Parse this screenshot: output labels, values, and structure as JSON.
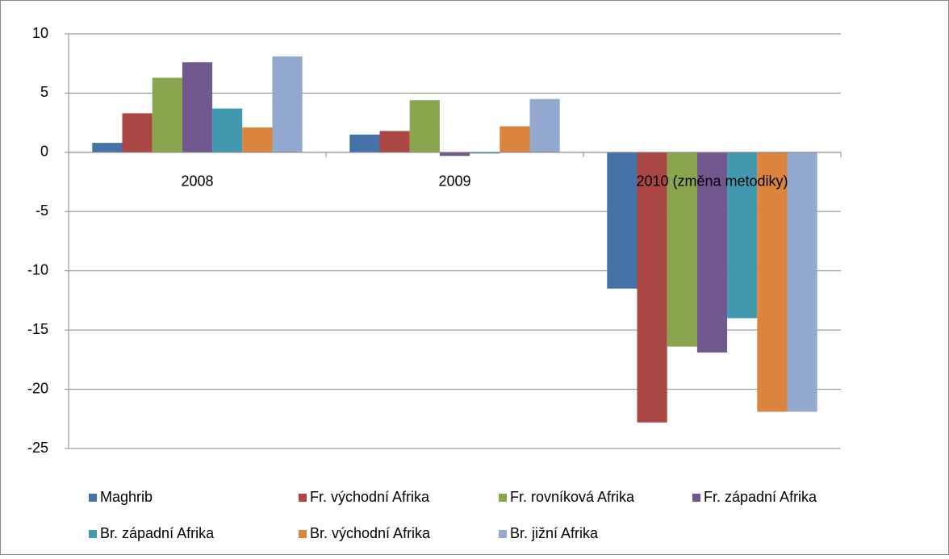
{
  "chart_data": {
    "type": "bar",
    "categories": [
      "2008",
      "2009",
      "2010 (změna metodiky)"
    ],
    "series": [
      {
        "name": "Maghrib",
        "color": "#4572a7",
        "values": [
          0.8,
          1.5,
          -11.5
        ]
      },
      {
        "name": "Fr. východní Afrika",
        "color": "#aa4643",
        "values": [
          3.3,
          1.8,
          -22.8
        ]
      },
      {
        "name": "Fr. rovníková Afrika",
        "color": "#89a54e",
        "values": [
          6.3,
          4.4,
          -16.4
        ]
      },
      {
        "name": "Fr. západní Afrika",
        "color": "#71588f",
        "values": [
          7.6,
          -0.3,
          -16.9
        ]
      },
      {
        "name": "Br. západní Afrika",
        "color": "#4198af",
        "values": [
          3.7,
          -0.1,
          -14.0
        ]
      },
      {
        "name": "Br. východní Afrika",
        "color": "#db843d",
        "values": [
          2.1,
          2.2,
          -21.9
        ]
      },
      {
        "name": "Br. jižní Afrika",
        "color": "#93a9cf",
        "values": [
          8.1,
          4.5,
          -21.9
        ]
      }
    ],
    "ylim": [
      -25,
      10
    ],
    "yticks": [
      -25,
      -20,
      -15,
      -10,
      -5,
      0,
      5,
      10
    ],
    "grid": true,
    "legend": "bottom"
  }
}
